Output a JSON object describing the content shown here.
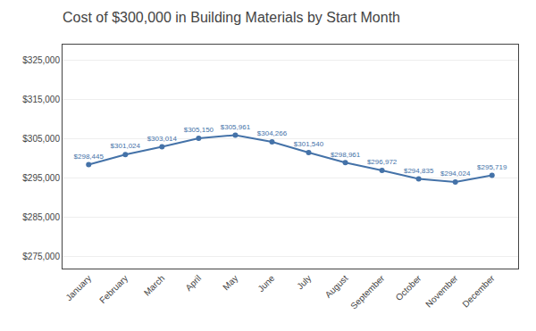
{
  "chart_data": {
    "type": "line",
    "title": "Cost of $300,000 in Building Materials by Start Month",
    "categories": [
      "January",
      "February",
      "March",
      "April",
      "May",
      "June",
      "July",
      "August",
      "September",
      "October",
      "November",
      "December"
    ],
    "values": [
      298445,
      301024,
      303014,
      305150,
      305961,
      304266,
      301540,
      298961,
      296972,
      294835,
      294024,
      295719
    ],
    "value_labels": [
      "$298,445",
      "$301,024",
      "$303,014",
      "$305,150",
      "$305,961",
      "$304,266",
      "$301,540",
      "$298,961",
      "$296,972",
      "$294,835",
      "$294,024",
      "$295,719"
    ],
    "color": "#4472a8",
    "marker": "circle",
    "line_style": "solid",
    "ylim": [
      272000,
      329000
    ],
    "yticks": [
      {
        "value": 275000,
        "label": "$275,000"
      },
      {
        "value": 285000,
        "label": "$285,000"
      },
      {
        "value": 295000,
        "label": "$295,000"
      },
      {
        "value": 305000,
        "label": "$305,000"
      },
      {
        "value": 315000,
        "label": "$315,000"
      },
      {
        "value": 325000,
        "label": "$325,000"
      }
    ],
    "grid": true,
    "data_labels": true
  }
}
